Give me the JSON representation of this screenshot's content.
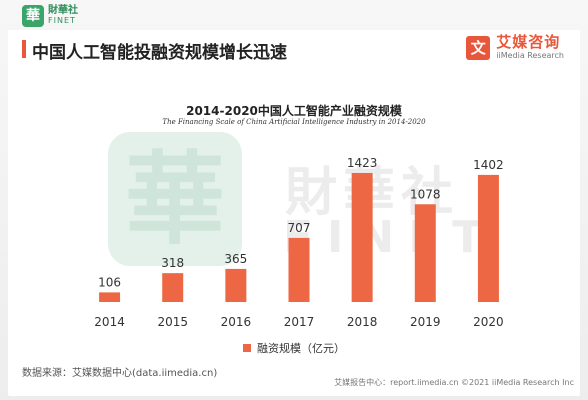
{
  "logo": {
    "cn": "財華社",
    "en": "FINET",
    "mark": "華"
  },
  "header": {
    "title": "中国人工智能投融资规模增长迅速"
  },
  "brand": {
    "icon": "文",
    "cn": "艾媒咨询",
    "en": "iiMedia Research"
  },
  "watermark": {
    "mark": "華",
    "cn": "財華社",
    "en": "FINET"
  },
  "chart_data": {
    "type": "bar",
    "title": "2014-2020中国人工智能产业融资规模",
    "subtitle": "The Financing Scale of China Artificial Intelligence Industry  in 2014-2020",
    "categories": [
      "2014",
      "2015",
      "2016",
      "2017",
      "2018",
      "2019",
      "2020"
    ],
    "series": [
      {
        "name": "融资规模（亿元）",
        "values": [
          106,
          318,
          365,
          707,
          1423,
          1078,
          1402
        ]
      }
    ],
    "xlabel": "",
    "ylabel": "",
    "ylim": [
      0,
      1500
    ],
    "grid": false,
    "legend": "bottom",
    "bar_color": "#ee6744"
  },
  "source": "数据来源：艾媒数据中心(data.iimedia.cn)",
  "footer": "艾媒报告中心：report.iimedia.cn  ©2021  iiMedia Research  Inc"
}
